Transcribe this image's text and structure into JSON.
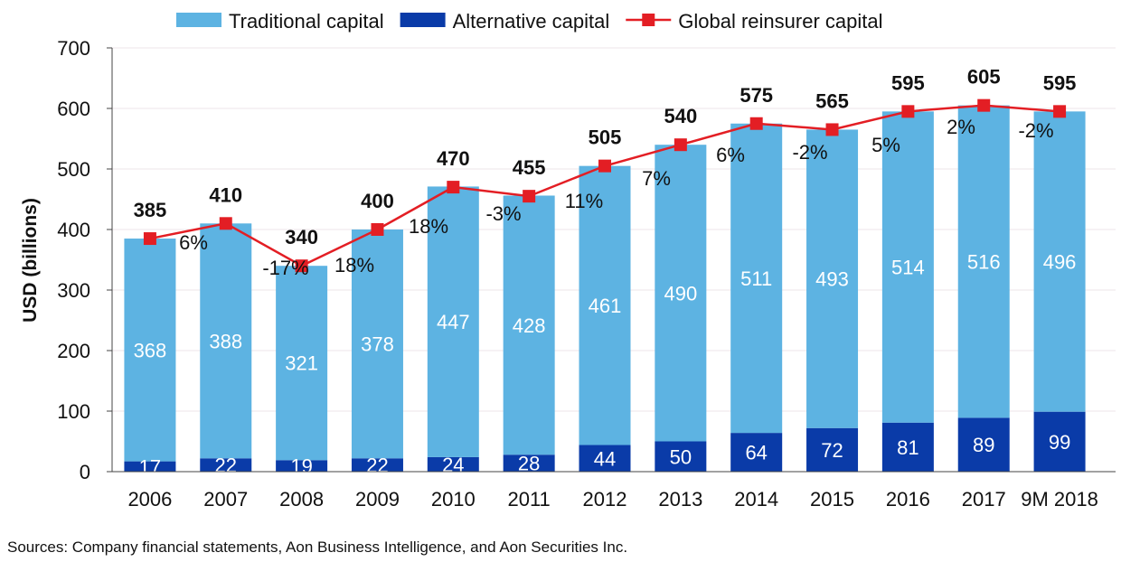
{
  "chart_data": {
    "type": "bar",
    "stacked": true,
    "ylabel": "USD (billions)",
    "ylim": [
      0,
      700
    ],
    "yticks": [
      0,
      100,
      200,
      300,
      400,
      500,
      600,
      700
    ],
    "grid": true,
    "legend_position": "top",
    "categories": [
      "2006",
      "2007",
      "2008",
      "2009",
      "2010",
      "2011",
      "2012",
      "2013",
      "2014",
      "2015",
      "2016",
      "2017",
      "9M 2018"
    ],
    "series": [
      {
        "name": "Traditional capital",
        "kind": "bar",
        "color": "#5DB3E2",
        "values": [
          368,
          388,
          321,
          378,
          447,
          428,
          461,
          490,
          511,
          493,
          514,
          516,
          496
        ]
      },
      {
        "name": "Alternative capital",
        "kind": "bar",
        "color": "#0A3BA8",
        "values": [
          17,
          22,
          19,
          22,
          24,
          28,
          44,
          50,
          64,
          72,
          81,
          89,
          99
        ]
      },
      {
        "name": "Global reinsurer capital",
        "kind": "line",
        "color": "#E31E24",
        "values": [
          385,
          410,
          340,
          400,
          470,
          455,
          505,
          540,
          575,
          565,
          595,
          605,
          595
        ]
      }
    ],
    "growth_labels": [
      "6%",
      "-17%",
      "18%",
      "18%",
      "-3%",
      "11%",
      "7%",
      "6%",
      "-2%",
      "5%",
      "2%",
      "-2%"
    ]
  },
  "source": "Sources: Company financial statements, Aon Business Intelligence, and Aon Securities Inc."
}
